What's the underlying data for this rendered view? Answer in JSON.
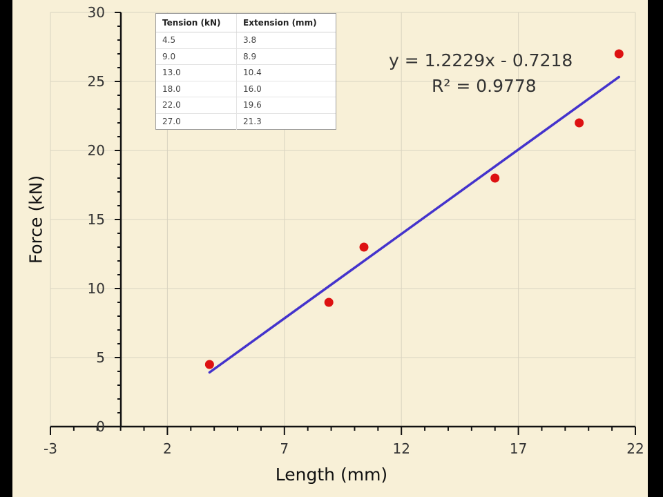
{
  "chart_data": {
    "type": "scatter",
    "xlabel": "Length (mm)",
    "ylabel": "Force (kN)",
    "xlim": [
      -3,
      22
    ],
    "ylim": [
      0,
      30
    ],
    "x_ticks": [
      "-3",
      "2",
      "7",
      "12",
      "17",
      "22"
    ],
    "y_ticks": [
      "0",
      "5",
      "10",
      "15",
      "20",
      "25",
      "30"
    ],
    "grid": true,
    "series": [
      {
        "x": [
          3.8,
          8.9,
          10.4,
          16.0,
          19.6,
          21.3
        ],
        "y": [
          4.5,
          9.0,
          13.0,
          18.0,
          22.0,
          27.0
        ],
        "color": "#dd1111"
      }
    ],
    "trendline": {
      "slope": 1.2229,
      "intercept": -0.7218,
      "x_range": [
        3.8,
        21.3
      ],
      "color": "#4433cc",
      "equation": "y = 1.2229x - 0.7218",
      "r_squared": "R² = 0.9778"
    },
    "table": {
      "headers": [
        "Tension (kN)",
        "Extension (mm)"
      ],
      "rows": [
        [
          "4.5",
          "3.8"
        ],
        [
          "9.0",
          "8.9"
        ],
        [
          "13.0",
          "10.4"
        ],
        [
          "18.0",
          "16.0"
        ],
        [
          "22.0",
          "19.6"
        ],
        [
          "27.0",
          "21.3"
        ]
      ]
    }
  }
}
